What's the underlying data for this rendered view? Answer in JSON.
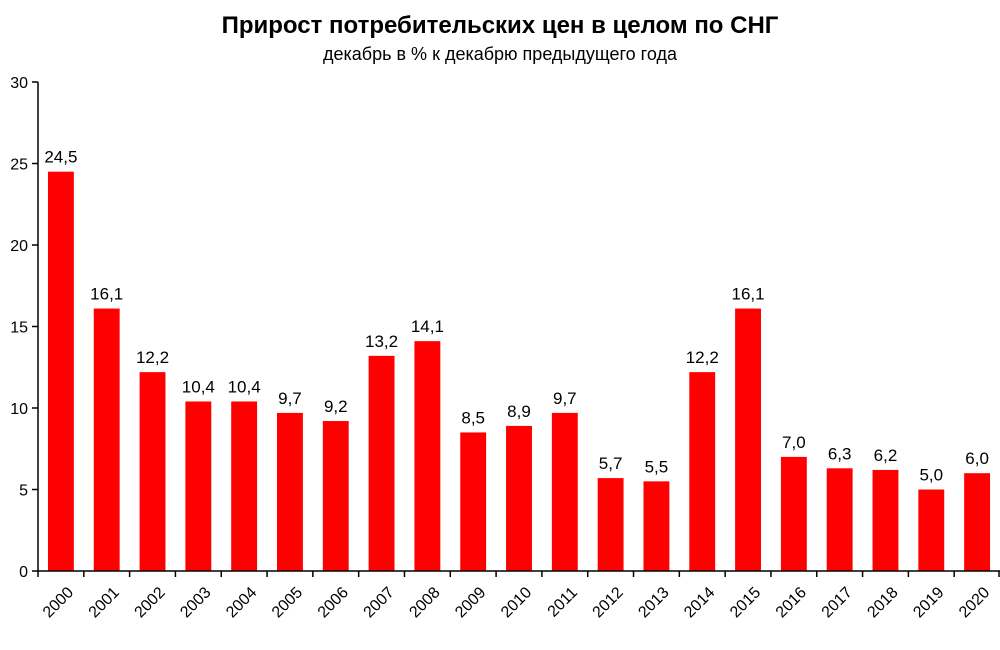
{
  "chart_data": {
    "type": "bar",
    "title": "Прирост потребительских цен в целом по СНГ",
    "subtitle": "декабрь в % к декабрю предыдущего года",
    "categories": [
      "2000",
      "2001",
      "2002",
      "2003",
      "2004",
      "2005",
      "2006",
      "2007",
      "2008",
      "2009",
      "2010",
      "2011",
      "2012",
      "2013",
      "2014",
      "2015",
      "2016",
      "2017",
      "2018",
      "2019",
      "2020"
    ],
    "values": [
      24.5,
      16.1,
      12.2,
      10.4,
      10.4,
      9.7,
      9.2,
      13.2,
      14.1,
      8.5,
      8.9,
      9.7,
      5.7,
      5.5,
      12.2,
      16.1,
      7.0,
      6.3,
      6.2,
      5.0,
      6.0
    ],
    "data_labels": [
      "24,5",
      "16,1",
      "12,2",
      "10,4",
      "10,4",
      "9,7",
      "9,2",
      "13,2",
      "14,1",
      "8,5",
      "8,9",
      "9,7",
      "5,7",
      "5,5",
      "12,2",
      "16,1",
      "7,0",
      "6,3",
      "6,2",
      "5,0",
      "6,0"
    ],
    "ylim": [
      0,
      30
    ],
    "yticks": [
      0,
      5,
      10,
      15,
      20,
      25,
      30
    ],
    "ytick_labels": [
      "0",
      "5",
      "10",
      "15",
      "20",
      "25",
      "30"
    ],
    "grid": false,
    "legend": "none",
    "bar_color": "#ff0000",
    "axis_color": "#000000"
  }
}
